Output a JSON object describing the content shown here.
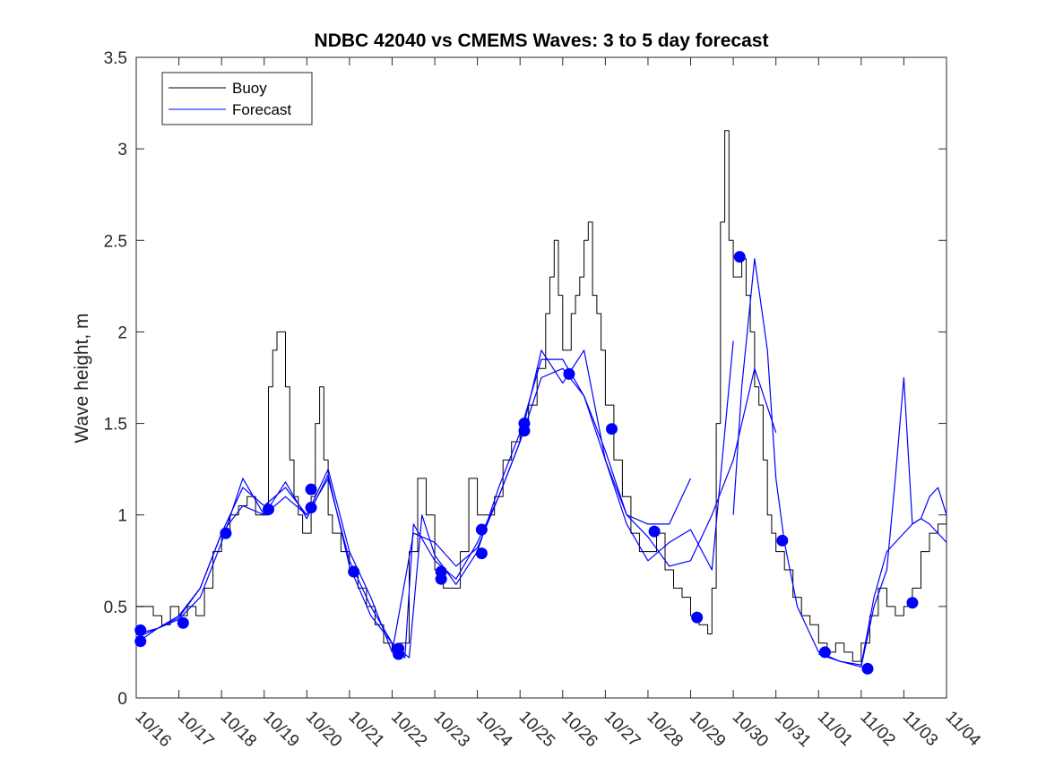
{
  "chart_data": {
    "type": "line",
    "title": "NDBC 42040 vs CMEMS Waves: 3 to 5 day forecast",
    "xlabel": "",
    "ylabel": "Wave height, m",
    "xlim": [
      0,
      19
    ],
    "ylim": [
      0,
      3.5
    ],
    "x_tick_values": [
      0,
      1,
      2,
      3,
      4,
      5,
      6,
      7,
      8,
      9,
      10,
      11,
      12,
      13,
      14,
      15,
      16,
      17,
      18,
      19
    ],
    "x_tick_labels": [
      "10/16",
      "10/17",
      "10/18",
      "10/19",
      "10/20",
      "10/21",
      "10/22",
      "10/23",
      "10/24",
      "10/25",
      "10/26",
      "10/27",
      "10/28",
      "10/29",
      "10/30",
      "10/31",
      "11/01",
      "11/02",
      "11/03",
      "11/04"
    ],
    "y_tick_values": [
      0,
      0.5,
      1,
      1.5,
      2,
      2.5,
      3,
      3.5
    ],
    "y_tick_labels": [
      "0",
      "0.5",
      "1",
      "1.5",
      "2",
      "2.5",
      "3",
      "3.5"
    ],
    "legend": {
      "position": "top-left",
      "entries": [
        "Buoy",
        "Forecast"
      ]
    },
    "colors": {
      "buoy": "#000000",
      "forecast": "#0000ff",
      "axes": "#262626"
    },
    "series": [
      {
        "name": "Buoy",
        "role": "buoy",
        "x": [
          0,
          0.2,
          0.4,
          0.6,
          0.8,
          1.0,
          1.2,
          1.4,
          1.6,
          1.8,
          2.0,
          2.2,
          2.4,
          2.6,
          2.8,
          3.0,
          3.1,
          3.2,
          3.3,
          3.4,
          3.5,
          3.6,
          3.7,
          3.8,
          3.9,
          4.0,
          4.1,
          4.2,
          4.3,
          4.4,
          4.5,
          4.6,
          4.7,
          4.8,
          5.0,
          5.2,
          5.4,
          5.6,
          5.8,
          6.0,
          6.2,
          6.4,
          6.6,
          6.8,
          7.0,
          7.2,
          7.4,
          7.6,
          7.8,
          8.0,
          8.2,
          8.4,
          8.6,
          8.8,
          9.0,
          9.2,
          9.4,
          9.6,
          9.7,
          9.8,
          9.9,
          10.0,
          10.1,
          10.2,
          10.3,
          10.4,
          10.5,
          10.6,
          10.7,
          10.8,
          10.9,
          11.0,
          11.2,
          11.4,
          11.6,
          11.8,
          12.0,
          12.2,
          12.4,
          12.6,
          12.8,
          13.0,
          13.2,
          13.4,
          13.5,
          13.6,
          13.7,
          13.8,
          13.9,
          14.0,
          14.1,
          14.2,
          14.3,
          14.4,
          14.5,
          14.6,
          14.7,
          14.8,
          14.9,
          15.0,
          15.2,
          15.4,
          15.6,
          15.8,
          16.0,
          16.2,
          16.4,
          16.6,
          16.8,
          17.0,
          17.2,
          17.4,
          17.6,
          17.8,
          18.0,
          18.2,
          18.4,
          18.6,
          18.8,
          19.0
        ],
        "y": [
          0.5,
          0.5,
          0.45,
          0.4,
          0.5,
          0.45,
          0.5,
          0.45,
          0.6,
          0.8,
          0.9,
          1.0,
          1.05,
          1.1,
          1.0,
          1.0,
          1.7,
          1.9,
          2.0,
          2.0,
          1.7,
          1.3,
          1.1,
          1.0,
          0.9,
          0.9,
          1.1,
          1.5,
          1.7,
          1.3,
          1.0,
          0.9,
          0.9,
          0.8,
          0.7,
          0.6,
          0.5,
          0.4,
          0.3,
          0.25,
          0.3,
          0.8,
          1.2,
          1.0,
          0.7,
          0.6,
          0.6,
          0.8,
          1.2,
          1.0,
          1.0,
          1.1,
          1.3,
          1.4,
          1.5,
          1.6,
          1.8,
          2.1,
          2.3,
          2.5,
          2.2,
          1.9,
          1.9,
          2.1,
          2.2,
          2.3,
          2.5,
          2.6,
          2.2,
          2.1,
          1.9,
          1.6,
          1.3,
          1.1,
          0.9,
          0.8,
          0.8,
          0.9,
          0.7,
          0.6,
          0.55,
          0.45,
          0.4,
          0.35,
          0.6,
          1.5,
          2.6,
          3.1,
          2.5,
          2.3,
          2.3,
          2.4,
          2.2,
          2.0,
          1.7,
          1.6,
          1.3,
          1.0,
          0.9,
          0.8,
          0.7,
          0.55,
          0.45,
          0.4,
          0.3,
          0.25,
          0.3,
          0.25,
          0.2,
          0.3,
          0.45,
          0.6,
          0.5,
          0.45,
          0.5,
          0.6,
          0.8,
          0.9,
          0.95,
          1.0
        ]
      },
      {
        "name": "Forecast",
        "role": "forecast",
        "x": [
          0,
          0.5,
          1.0,
          1.5,
          2.0,
          2.5,
          3.0,
          3.5,
          4.0,
          4.5,
          5.0,
          5.5,
          6.0,
          6.3,
          6.5,
          7.0,
          7.5,
          8.0,
          8.5,
          9.0,
          9.5,
          10.0,
          10.5,
          11.0,
          11.5,
          12.0,
          12.5,
          13.0
        ],
        "y": [
          0.35,
          0.38,
          0.45,
          0.6,
          0.9,
          1.15,
          1.05,
          1.15,
          1.0,
          1.2,
          0.75,
          0.5,
          0.3,
          0.22,
          0.95,
          0.75,
          0.65,
          0.85,
          1.1,
          1.4,
          1.75,
          1.8,
          1.65,
          1.35,
          1.0,
          0.95,
          0.95,
          1.2
        ]
      },
      {
        "name": "Forecast",
        "role": "forecast",
        "x": [
          0,
          0.5,
          1.0,
          1.5,
          2.0,
          2.5,
          3.0,
          3.5,
          4.0,
          4.5,
          5.0,
          5.5,
          6.0,
          6.4,
          6.7,
          7.0,
          7.5,
          8.0,
          8.5,
          9.0,
          9.5,
          10.0,
          10.5,
          11.0,
          11.5,
          12.0,
          12.5,
          13.0,
          13.5,
          14.0
        ],
        "y": [
          0.3,
          0.38,
          0.43,
          0.55,
          0.85,
          1.2,
          1.0,
          1.18,
          0.98,
          1.22,
          0.72,
          0.45,
          0.3,
          0.22,
          1.0,
          0.78,
          0.62,
          0.8,
          1.15,
          1.45,
          1.85,
          1.85,
          1.65,
          1.3,
          0.95,
          0.75,
          0.85,
          0.92,
          0.7,
          1.95
        ]
      },
      {
        "name": "Forecast",
        "role": "forecast",
        "x": [
          0,
          0.5,
          1.0,
          1.5,
          2.0,
          2.5,
          3.0,
          3.5,
          4.0,
          4.5,
          5.0,
          5.5,
          6.0,
          6.5,
          7.0,
          7.5,
          8.0,
          8.5,
          9.0,
          9.5,
          10.0,
          10.5,
          11.0,
          11.5,
          12.0,
          12.5,
          13.0,
          13.5,
          14.0,
          14.5,
          15.0
        ],
        "y": [
          0.33,
          0.38,
          0.44,
          0.6,
          0.9,
          1.05,
          1.0,
          1.1,
          1.0,
          1.25,
          0.8,
          0.55,
          0.25,
          0.9,
          0.85,
          0.72,
          0.82,
          1.1,
          1.4,
          1.9,
          1.72,
          1.9,
          1.3,
          1.0,
          0.88,
          0.72,
          0.75,
          1.0,
          1.3,
          1.8,
          1.45
        ]
      },
      {
        "name": "Forecast",
        "role": "forecast",
        "x": [
          14.0,
          14.2,
          14.5,
          14.8,
          15.0,
          15.2,
          15.5,
          16.0,
          16.5,
          17.0,
          17.3,
          17.6,
          17.8,
          18.0,
          18.2,
          18.4,
          18.6,
          18.8,
          19.0
        ],
        "y": [
          1.0,
          1.7,
          2.4,
          1.9,
          1.2,
          0.85,
          0.5,
          0.25,
          0.2,
          0.17,
          0.5,
          0.7,
          1.2,
          1.75,
          0.95,
          0.98,
          1.1,
          1.15,
          1.0
        ]
      },
      {
        "name": "Forecast",
        "role": "forecast",
        "x": [
          16.0,
          16.5,
          17.0,
          17.3,
          17.6,
          18.0,
          18.2,
          18.4,
          18.6,
          18.8,
          19.0
        ],
        "y": [
          0.24,
          0.2,
          0.18,
          0.55,
          0.8,
          0.9,
          0.95,
          0.98,
          0.95,
          0.9,
          0.85
        ]
      }
    ],
    "markers": {
      "name": "Forecast points",
      "x": [
        0.1,
        0.1,
        1.1,
        2.1,
        3.1,
        4.1,
        4.1,
        5.1,
        6.15,
        6.15,
        7.15,
        7.15,
        8.1,
        8.1,
        9.1,
        9.1,
        10.15,
        11.15,
        12.15,
        13.15,
        14.15,
        15.15,
        16.15,
        17.15,
        18.2
      ],
      "y": [
        0.37,
        0.31,
        0.41,
        0.9,
        1.03,
        1.14,
        1.04,
        0.69,
        0.27,
        0.24,
        0.69,
        0.65,
        0.92,
        0.79,
        1.5,
        1.46,
        1.77,
        1.47,
        0.91,
        0.44,
        2.41,
        0.86,
        0.25,
        0.16,
        0.52
      ]
    }
  }
}
